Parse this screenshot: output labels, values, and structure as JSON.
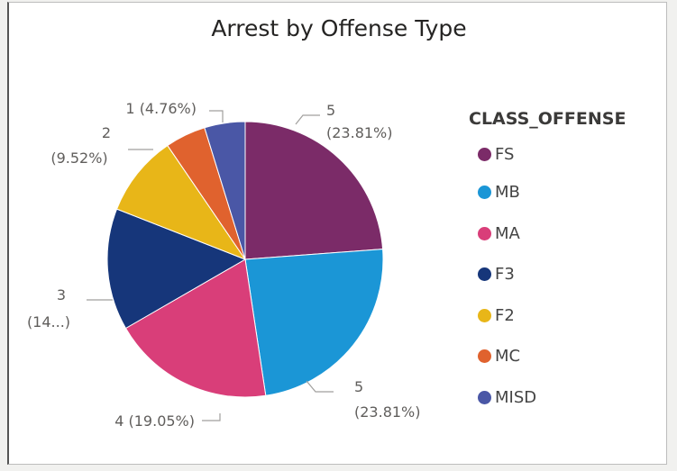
{
  "chart_data": {
    "type": "pie",
    "title": "Arrest by Offense Type",
    "legend_title": "CLASS_OFFENSE",
    "legend_position": "right",
    "slices": [
      {
        "label": "FS",
        "value": 5,
        "percent_label": "(23.81%)",
        "color": "#7b2b68"
      },
      {
        "label": "MB",
        "value": 5,
        "percent_label": "(23.81%)",
        "color": "#1b96d6"
      },
      {
        "label": "MA",
        "value": 4,
        "percent_label": "(19.05%)",
        "color": "#d93e79"
      },
      {
        "label": "F3",
        "value": 3,
        "percent_label": "(14...)",
        "color": "#16367a"
      },
      {
        "label": "F2",
        "value": 2,
        "percent_label": "(9.52%)",
        "color": "#e8b618"
      },
      {
        "label": "MC",
        "value": 1,
        "percent_label": "(4.76%)",
        "color": "#e0622e"
      },
      {
        "label": "MISD",
        "value": 1,
        "percent_label": "(4.76%)",
        "color": "#4a57a6"
      }
    ]
  }
}
